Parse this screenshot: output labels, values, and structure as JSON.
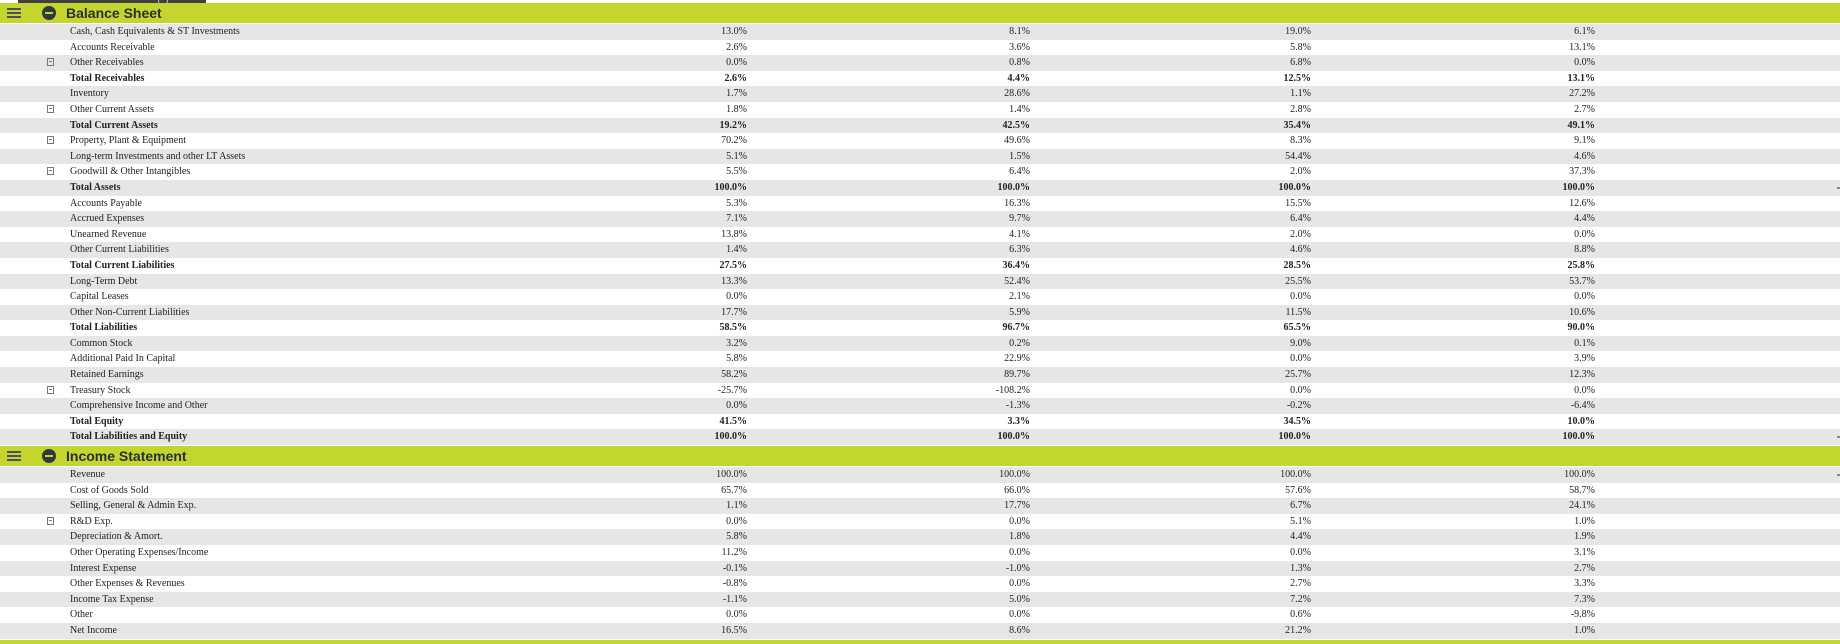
{
  "colors": {
    "section_header": "#c5d530",
    "row_shade": "#e6e6e6"
  },
  "balance_sheet": {
    "title": "Balance Sheet",
    "rows": [
      {
        "label": "Cash, Cash Equivalents & ST Investments",
        "values": [
          "13.0%",
          "8.1%",
          "19.0%",
          "6.1%"
        ],
        "bold": false,
        "flag": false
      },
      {
        "label": "Accounts Receivable",
        "values": [
          "2.6%",
          "3.6%",
          "5.8%",
          "13.1%"
        ],
        "bold": false,
        "flag": false
      },
      {
        "label": "Other Receivables",
        "values": [
          "0.0%",
          "0.8%",
          "6.8%",
          "0.0%"
        ],
        "bold": false,
        "flag": true
      },
      {
        "label": "Total Receivables",
        "values": [
          "2.6%",
          "4.4%",
          "12.5%",
          "13.1%"
        ],
        "bold": true,
        "flag": false
      },
      {
        "label": "Inventory",
        "values": [
          "1.7%",
          "28.6%",
          "1.1%",
          "27.2%"
        ],
        "bold": false,
        "flag": false
      },
      {
        "label": "Other Current Assets",
        "values": [
          "1.8%",
          "1.4%",
          "2.8%",
          "2.7%"
        ],
        "bold": false,
        "flag": true
      },
      {
        "label": "Total Current Assets",
        "values": [
          "19.2%",
          "42.5%",
          "35.4%",
          "49.1%"
        ],
        "bold": true,
        "flag": false
      },
      {
        "label": "Property, Plant & Equipment",
        "values": [
          "70.2%",
          "49.6%",
          "8.3%",
          "9.1%"
        ],
        "bold": false,
        "flag": true
      },
      {
        "label": "Long-term Investments and other LT Assets",
        "values": [
          "5.1%",
          "1.5%",
          "54.4%",
          "4.6%"
        ],
        "bold": false,
        "flag": false
      },
      {
        "label": "Goodwill & Other Intangibles",
        "values": [
          "5.5%",
          "6.4%",
          "2.0%",
          "37.3%"
        ],
        "bold": false,
        "flag": true
      },
      {
        "label": "Total Assets",
        "values": [
          "100.0%",
          "100.0%",
          "100.0%",
          "100.0%"
        ],
        "bold": true,
        "flag": false
      },
      {
        "label": "Accounts Payable",
        "values": [
          "5.3%",
          "16.3%",
          "15.5%",
          "12.6%"
        ],
        "bold": false,
        "flag": false
      },
      {
        "label": "Accrued Expenses",
        "values": [
          "7.1%",
          "9.7%",
          "6.4%",
          "4.4%"
        ],
        "bold": false,
        "flag": false
      },
      {
        "label": "Unearned Revenue",
        "values": [
          "13.8%",
          "4.1%",
          "2.0%",
          "0.0%"
        ],
        "bold": false,
        "flag": false
      },
      {
        "label": "Other Current Liabilities",
        "values": [
          "1.4%",
          "6.3%",
          "4.6%",
          "8.8%"
        ],
        "bold": false,
        "flag": false
      },
      {
        "label": "Total Current Liabilities",
        "values": [
          "27.5%",
          "36.4%",
          "28.5%",
          "25.8%"
        ],
        "bold": true,
        "flag": false
      },
      {
        "label": "Long-Term Debt",
        "values": [
          "13.3%",
          "52.4%",
          "25.5%",
          "53.7%"
        ],
        "bold": false,
        "flag": false
      },
      {
        "label": "Capital Leases",
        "values": [
          "0.0%",
          "2.1%",
          "0.0%",
          "0.0%"
        ],
        "bold": false,
        "flag": false
      },
      {
        "label": "Other Non-Current Liabilities",
        "values": [
          "17.7%",
          "5.9%",
          "11.5%",
          "10.6%"
        ],
        "bold": false,
        "flag": false
      },
      {
        "label": "Total Liabilities",
        "values": [
          "58.5%",
          "96.7%",
          "65.5%",
          "90.0%"
        ],
        "bold": true,
        "flag": false
      },
      {
        "label": "Common Stock",
        "values": [
          "3.2%",
          "0.2%",
          "9.0%",
          "0.1%"
        ],
        "bold": false,
        "flag": false
      },
      {
        "label": "Additional Paid In Capital",
        "values": [
          "5.8%",
          "22.9%",
          "0.0%",
          "3.9%"
        ],
        "bold": false,
        "flag": false
      },
      {
        "label": "Retained Earnings",
        "values": [
          "58.2%",
          "89.7%",
          "25.7%",
          "12.3%"
        ],
        "bold": false,
        "flag": false
      },
      {
        "label": "Treasury Stock",
        "values": [
          "-25.7%",
          "-108.2%",
          "0.0%",
          "0.0%"
        ],
        "bold": false,
        "flag": true
      },
      {
        "label": "Comprehensive Income and Other",
        "values": [
          "0.0%",
          "-1.3%",
          "-0.2%",
          "-6.4%"
        ],
        "bold": false,
        "flag": false
      },
      {
        "label": "Total Equity",
        "values": [
          "41.5%",
          "3.3%",
          "34.5%",
          "10.0%"
        ],
        "bold": true,
        "flag": false
      },
      {
        "label": "Total Liabilities and Equity",
        "values": [
          "100.0%",
          "100.0%",
          "100.0%",
          "100.0%"
        ],
        "bold": true,
        "flag": false
      }
    ]
  },
  "income_statement": {
    "title": "Income Statement",
    "rows": [
      {
        "label": "Revenue",
        "values": [
          "100.0%",
          "100.0%",
          "100.0%",
          "100.0%"
        ],
        "bold": false,
        "flag": false
      },
      {
        "label": "Cost of Goods Sold",
        "values": [
          "65.7%",
          "66.0%",
          "57.6%",
          "58.7%"
        ],
        "bold": false,
        "flag": false
      },
      {
        "label": "Selling, General & Admin Exp.",
        "values": [
          "1.1%",
          "17.7%",
          "6.7%",
          "24.1%"
        ],
        "bold": false,
        "flag": false
      },
      {
        "label": "R&D Exp.",
        "values": [
          "0.0%",
          "0.0%",
          "5.1%",
          "1.0%"
        ],
        "bold": false,
        "flag": true
      },
      {
        "label": "Depreciation & Amort.",
        "values": [
          "5.8%",
          "1.8%",
          "4.4%",
          "1.9%"
        ],
        "bold": false,
        "flag": false
      },
      {
        "label": "Other Operating Expenses/Income",
        "values": [
          "11.2%",
          "0.0%",
          "0.0%",
          "3.1%"
        ],
        "bold": false,
        "flag": false
      },
      {
        "label": "Interest Expense",
        "values": [
          "-0.1%",
          "-1.0%",
          "1.3%",
          "2.7%"
        ],
        "bold": false,
        "flag": false
      },
      {
        "label": "Other Expenses & Revenues",
        "values": [
          "-0.8%",
          "0.0%",
          "2.7%",
          "3.3%"
        ],
        "bold": false,
        "flag": false
      },
      {
        "label": "Income Tax Expense",
        "values": [
          "-1.1%",
          "5.0%",
          "7.2%",
          "7.3%"
        ],
        "bold": false,
        "flag": false
      },
      {
        "label": "Other",
        "values": [
          "0.0%",
          "0.0%",
          "0.6%",
          "-9.8%"
        ],
        "bold": false,
        "flag": false
      },
      {
        "label": "Net Income",
        "values": [
          "16.5%",
          "8.6%",
          "21.2%",
          "1.0%"
        ],
        "bold": false,
        "flag": false
      }
    ]
  }
}
